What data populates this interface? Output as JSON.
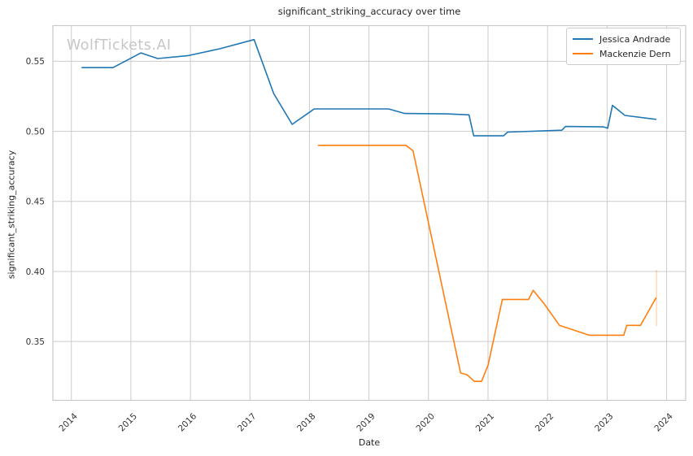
{
  "watermark": "WolfTickets.AI",
  "chart_data": {
    "type": "line",
    "title": "significant_striking_accuracy over time",
    "xlabel": "Date",
    "ylabel": "significant_striking_accuracy",
    "xlim": [
      2013.69,
      2024.32
    ],
    "ylim": [
      0.308,
      0.5755
    ],
    "grid": true,
    "legend_position": "upper right",
    "x_ticks": [
      2014,
      2015,
      2016,
      2017,
      2018,
      2019,
      2020,
      2021,
      2022,
      2023,
      2024
    ],
    "x_tick_labels": [
      "2014",
      "2015",
      "2016",
      "2017",
      "2018",
      "2019",
      "2020",
      "2021",
      "2022",
      "2023",
      "2024"
    ],
    "y_ticks": [
      0.35,
      0.4,
      0.45,
      0.5,
      0.55
    ],
    "y_tick_labels": [
      "0.35",
      "0.40",
      "0.45",
      "0.50",
      "0.55"
    ],
    "grid_color": "#cccccc",
    "spine_color": "#c9c9c9",
    "series": [
      {
        "name": "Jessica Andrade",
        "color": "#1f77b4",
        "points": [
          [
            2014.18,
            0.5455
          ],
          [
            2014.7,
            0.5455
          ],
          [
            2015.17,
            0.556
          ],
          [
            2015.45,
            0.552
          ],
          [
            2015.95,
            0.554
          ],
          [
            2016.5,
            0.559
          ],
          [
            2017.07,
            0.5655
          ],
          [
            2017.4,
            0.527
          ],
          [
            2017.71,
            0.505
          ],
          [
            2018.08,
            0.516
          ],
          [
            2019.33,
            0.516
          ],
          [
            2019.6,
            0.5128
          ],
          [
            2020.3,
            0.5125
          ],
          [
            2020.68,
            0.5118
          ],
          [
            2020.76,
            0.4968
          ],
          [
            2021.26,
            0.4968
          ],
          [
            2021.33,
            0.4995
          ],
          [
            2022.24,
            0.5008
          ],
          [
            2022.3,
            0.5035
          ],
          [
            2022.94,
            0.5032
          ],
          [
            2023.01,
            0.5022
          ],
          [
            2023.09,
            0.5186
          ],
          [
            2023.3,
            0.5114
          ],
          [
            2023.82,
            0.5086
          ]
        ]
      },
      {
        "name": "Mackenzie Dern",
        "color": "#ff7f0e",
        "points": [
          [
            2018.15,
            0.49
          ],
          [
            2019.62,
            0.49
          ],
          [
            2019.74,
            0.4862
          ],
          [
            2020.54,
            0.3275
          ],
          [
            2020.65,
            0.3262
          ],
          [
            2020.77,
            0.3215
          ],
          [
            2020.89,
            0.3215
          ],
          [
            2021.0,
            0.333
          ],
          [
            2021.24,
            0.38
          ],
          [
            2021.68,
            0.38
          ],
          [
            2021.76,
            0.3865
          ],
          [
            2021.95,
            0.3765
          ],
          [
            2022.2,
            0.3615
          ],
          [
            2022.7,
            0.3545
          ],
          [
            2023.28,
            0.3545
          ],
          [
            2023.33,
            0.3615
          ],
          [
            2023.56,
            0.3615
          ],
          [
            2023.82,
            0.381
          ]
        ],
        "faint_vertical_marker": {
          "x": 2023.83,
          "y_from": 0.361,
          "y_to": 0.401,
          "opacity": 0.3
        }
      }
    ]
  }
}
